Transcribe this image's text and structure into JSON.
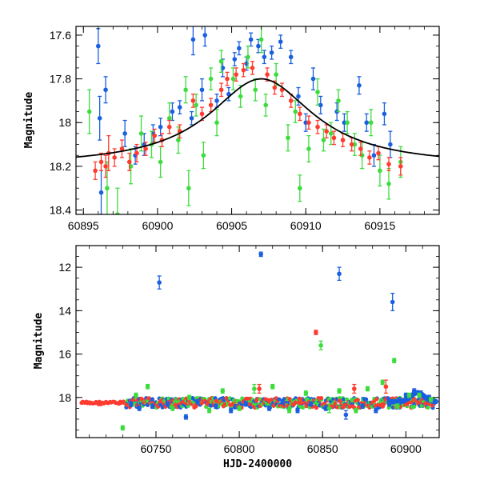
{
  "chart_data": [
    {
      "type": "scatter",
      "ylabel": "Magnitude",
      "xlabel": "",
      "xlim": [
        60894.5,
        60919
      ],
      "ylim": [
        18.42,
        17.56
      ],
      "y_inverted": true,
      "x_ticks": [
        60895,
        60900,
        60905,
        60910,
        60915
      ],
      "x_tick_labels": [
        "60895",
        "60900",
        "60905",
        "60910",
        "60915"
      ],
      "y_ticks": [
        17.6,
        17.8,
        18,
        18.2,
        18.4
      ],
      "y_tick_labels": [
        "17.6",
        "17.8",
        "18",
        "18.2",
        "18.4"
      ],
      "model_curve": {
        "color": "#000000",
        "baseline": 18.2,
        "peak": 17.8,
        "t0": 60907.0,
        "width": 4.3
      },
      "series": [
        {
          "color": "#1a5fe0",
          "points": [
            [
              60896.0,
              17.65,
              0.08
            ],
            [
              60896.1,
              17.98,
              0.1
            ],
            [
              60896.2,
              18.32,
              0.1
            ],
            [
              60896.5,
              17.85,
              0.06
            ],
            [
              60897.8,
              18.05,
              0.06
            ],
            [
              60898.5,
              18.15,
              0.04
            ],
            [
              60899.1,
              18.1,
              0.05
            ],
            [
              60899.7,
              18.05,
              0.04
            ],
            [
              60900.2,
              18.02,
              0.04
            ],
            [
              60901.0,
              17.95,
              0.04
            ],
            [
              60901.5,
              17.93,
              0.03
            ],
            [
              60902.3,
              17.98,
              0.03
            ],
            [
              60902.4,
              17.62,
              0.07
            ],
            [
              60903.0,
              17.85,
              0.05
            ],
            [
              60903.2,
              17.6,
              0.05
            ],
            [
              60904.0,
              17.9,
              0.03
            ],
            [
              60904.4,
              17.75,
              0.04
            ],
            [
              60904.8,
              17.87,
              0.03
            ],
            [
              60905.2,
              17.71,
              0.03
            ],
            [
              60905.5,
              17.66,
              0.03
            ],
            [
              60906.0,
              17.73,
              0.03
            ],
            [
              60906.3,
              17.62,
              0.03
            ],
            [
              60906.8,
              17.65,
              0.03
            ],
            [
              60907.2,
              17.7,
              0.03
            ],
            [
              60907.7,
              17.68,
              0.03
            ],
            [
              60908.3,
              17.63,
              0.03
            ],
            [
              60909.0,
              17.7,
              0.03
            ],
            [
              60909.5,
              17.88,
              0.04
            ],
            [
              60910.0,
              18.0,
              0.04
            ],
            [
              60910.5,
              17.8,
              0.05
            ],
            [
              60911.0,
              17.92,
              0.04
            ],
            [
              60912.1,
              17.95,
              0.04
            ],
            [
              60912.6,
              18.0,
              0.04
            ],
            [
              60913.6,
              17.83,
              0.04
            ],
            [
              60914.1,
              18.0,
              0.04
            ],
            [
              60914.6,
              18.15,
              0.05
            ],
            [
              60915.3,
              17.96,
              0.05
            ],
            [
              60915.7,
              18.1,
              0.06
            ]
          ]
        },
        {
          "color": "#3ddc3d",
          "points": [
            [
              60895.4,
              17.95,
              0.1
            ],
            [
              60896.6,
              18.3,
              0.12
            ],
            [
              60897.3,
              18.42,
              0.12
            ],
            [
              60898.2,
              18.2,
              0.08
            ],
            [
              60898.9,
              18.05,
              0.08
            ],
            [
              60899.6,
              18.1,
              0.06
            ],
            [
              60900.2,
              18.18,
              0.07
            ],
            [
              60900.8,
              17.98,
              0.07
            ],
            [
              60901.4,
              18.08,
              0.06
            ],
            [
              60901.9,
              17.85,
              0.06
            ],
            [
              60902.1,
              18.3,
              0.08
            ],
            [
              60902.6,
              17.92,
              0.05
            ],
            [
              60903.1,
              18.15,
              0.06
            ],
            [
              60903.6,
              17.8,
              0.05
            ],
            [
              60904.0,
              18.0,
              0.06
            ],
            [
              60904.3,
              17.72,
              0.05
            ],
            [
              60905.1,
              17.8,
              0.05
            ],
            [
              60905.6,
              17.88,
              0.05
            ],
            [
              60906.1,
              17.7,
              0.05
            ],
            [
              60906.6,
              17.85,
              0.05
            ],
            [
              60907.0,
              17.62,
              0.06
            ],
            [
              60907.3,
              17.92,
              0.05
            ],
            [
              60908.0,
              17.78,
              0.05
            ],
            [
              60908.8,
              18.07,
              0.06
            ],
            [
              60909.3,
              17.95,
              0.05
            ],
            [
              60909.6,
              18.3,
              0.06
            ],
            [
              60910.2,
              18.12,
              0.06
            ],
            [
              60910.8,
              17.86,
              0.06
            ],
            [
              60911.2,
              18.08,
              0.05
            ],
            [
              60911.7,
              18.05,
              0.05
            ],
            [
              60912.2,
              17.9,
              0.05
            ],
            [
              60912.8,
              18.0,
              0.05
            ],
            [
              60913.3,
              18.1,
              0.05
            ],
            [
              60913.8,
              18.15,
              0.06
            ],
            [
              60914.4,
              18.0,
              0.06
            ],
            [
              60915.0,
              18.22,
              0.07
            ],
            [
              60915.6,
              18.28,
              0.07
            ],
            [
              60916.4,
              18.18,
              0.07
            ]
          ]
        },
        {
          "color": "#ff3b2f",
          "points": [
            [
              60895.8,
              18.22,
              0.04
            ],
            [
              60896.2,
              18.18,
              0.04
            ],
            [
              60896.5,
              18.2,
              0.05
            ],
            [
              60896.7,
              18.14,
              0.08
            ],
            [
              60897.1,
              18.16,
              0.04
            ],
            [
              60897.6,
              18.12,
              0.04
            ],
            [
              60898.1,
              18.18,
              0.04
            ],
            [
              60898.6,
              18.14,
              0.04
            ],
            [
              60899.2,
              18.12,
              0.03
            ],
            [
              60899.8,
              18.06,
              0.03
            ],
            [
              60900.3,
              18.08,
              0.03
            ],
            [
              60900.8,
              18.02,
              0.03
            ],
            [
              60901.5,
              18.04,
              0.03
            ],
            [
              60902.4,
              17.9,
              0.03
            ],
            [
              60903.0,
              17.96,
              0.03
            ],
            [
              60903.6,
              17.92,
              0.03
            ],
            [
              60904.3,
              17.85,
              0.03
            ],
            [
              60904.7,
              17.8,
              0.03
            ],
            [
              60905.3,
              17.78,
              0.03
            ],
            [
              60905.8,
              17.76,
              0.03
            ],
            [
              60906.4,
              17.75,
              0.03
            ],
            [
              60907.4,
              17.78,
              0.03
            ],
            [
              60907.9,
              17.84,
              0.03
            ],
            [
              60908.4,
              17.85,
              0.03
            ],
            [
              60909.0,
              17.9,
              0.03
            ],
            [
              60909.6,
              17.96,
              0.03
            ],
            [
              60910.2,
              18.0,
              0.03
            ],
            [
              60910.8,
              18.02,
              0.03
            ],
            [
              60911.4,
              18.04,
              0.03
            ],
            [
              60911.9,
              18.07,
              0.03
            ],
            [
              60912.5,
              18.08,
              0.03
            ],
            [
              60913.1,
              18.1,
              0.03
            ],
            [
              60913.7,
              18.12,
              0.03
            ],
            [
              60914.3,
              18.16,
              0.03
            ],
            [
              60914.9,
              18.14,
              0.03
            ],
            [
              60915.6,
              18.19,
              0.03
            ],
            [
              60916.4,
              18.2,
              0.04
            ]
          ]
        }
      ]
    },
    {
      "type": "scatter",
      "ylabel": "Magnitude",
      "xlabel": "HJD-2400000",
      "xlim": [
        60702,
        60920
      ],
      "ylim": [
        19.85,
        11.0
      ],
      "y_inverted": true,
      "x_ticks": [
        60750,
        60800,
        60850,
        60900
      ],
      "x_tick_labels": [
        "60750",
        "60800",
        "60850",
        "60900"
      ],
      "y_ticks": [
        12,
        14,
        16,
        18
      ],
      "y_tick_labels": [
        "12",
        "14",
        "16",
        "18"
      ],
      "series": [
        {
          "color": "#1a5fe0",
          "points": [
            [
              60752,
              12.7,
              0.3
            ],
            [
              60813,
              11.4,
              0.1
            ],
            [
              60860,
              12.3,
              0.3
            ],
            [
              60892,
              13.6,
              0.4
            ],
            [
              60735,
              18.3,
              0.1
            ],
            [
              60740,
              18.5,
              0.1
            ],
            [
              60748,
              18.4,
              0.1
            ],
            [
              60757,
              18.3,
              0.1
            ],
            [
              60768,
              18.9,
              0.1
            ],
            [
              60775,
              18.2,
              0.1
            ],
            [
              60786,
              18.4,
              0.1
            ],
            [
              60795,
              18.6,
              0.1
            ],
            [
              60804,
              18.3,
              0.1
            ],
            [
              60818,
              18.5,
              0.1
            ],
            [
              60826,
              18.2,
              0.1
            ],
            [
              60835,
              18.6,
              0.1
            ],
            [
              60843,
              18.3,
              0.1
            ],
            [
              60852,
              18.5,
              0.1
            ],
            [
              60864,
              18.8,
              0.2
            ],
            [
              60874,
              18.4,
              0.1
            ],
            [
              60882,
              18.6,
              0.1
            ],
            [
              60890,
              18.3,
              0.1
            ],
            [
              60896,
              18.1,
              0.1
            ],
            [
              60900,
              17.9,
              0.1
            ],
            [
              60905,
              17.7,
              0.1
            ],
            [
              60909,
              17.8,
              0.1
            ],
            [
              60914,
              18.0,
              0.1
            ]
          ]
        },
        {
          "color": "#3ddc3d",
          "points": [
            [
              60849,
              15.6,
              0.2
            ],
            [
              60893,
              16.3,
              0.1
            ],
            [
              60730,
              19.4,
              0.1
            ],
            [
              60738,
              17.9,
              0.1
            ],
            [
              60745,
              17.5,
              0.1
            ],
            [
              60760,
              18.5,
              0.1
            ],
            [
              60770,
              18.0,
              0.1
            ],
            [
              60782,
              18.6,
              0.1
            ],
            [
              60790,
              17.7,
              0.1
            ],
            [
              60800,
              18.5,
              0.1
            ],
            [
              60809,
              17.6,
              0.2
            ],
            [
              60820,
              17.5,
              0.1
            ],
            [
              60830,
              18.6,
              0.1
            ],
            [
              60840,
              17.8,
              0.1
            ],
            [
              60854,
              18.5,
              0.2
            ],
            [
              60860,
              17.7,
              0.1
            ],
            [
              60870,
              18.6,
              0.1
            ],
            [
              60877,
              17.6,
              0.1
            ],
            [
              60886,
              17.3,
              0.1
            ],
            [
              60895,
              18.4,
              0.1
            ],
            [
              60902,
              17.9,
              0.1
            ],
            [
              60908,
              17.9,
              0.1
            ],
            [
              60915,
              18.1,
              0.1
            ]
          ]
        },
        {
          "color": "#ff3b2f",
          "points": [
            [
              60846,
              15.0,
              0.1
            ],
            [
              60869,
              17.6,
              0.2
            ],
            [
              60812,
              17.6,
              0.2
            ],
            [
              60888,
              17.5,
              0.3
            ]
          ]
        }
      ],
      "baseline_band": {
        "color": "#ff3b2f",
        "x_start": 60705,
        "x_end": 60917,
        "level": 18.25
      },
      "bump": {
        "color": "#1a5fe0",
        "x_start": 60890,
        "x_end": 60918,
        "peak": 17.78,
        "t0": 60907
      }
    }
  ]
}
